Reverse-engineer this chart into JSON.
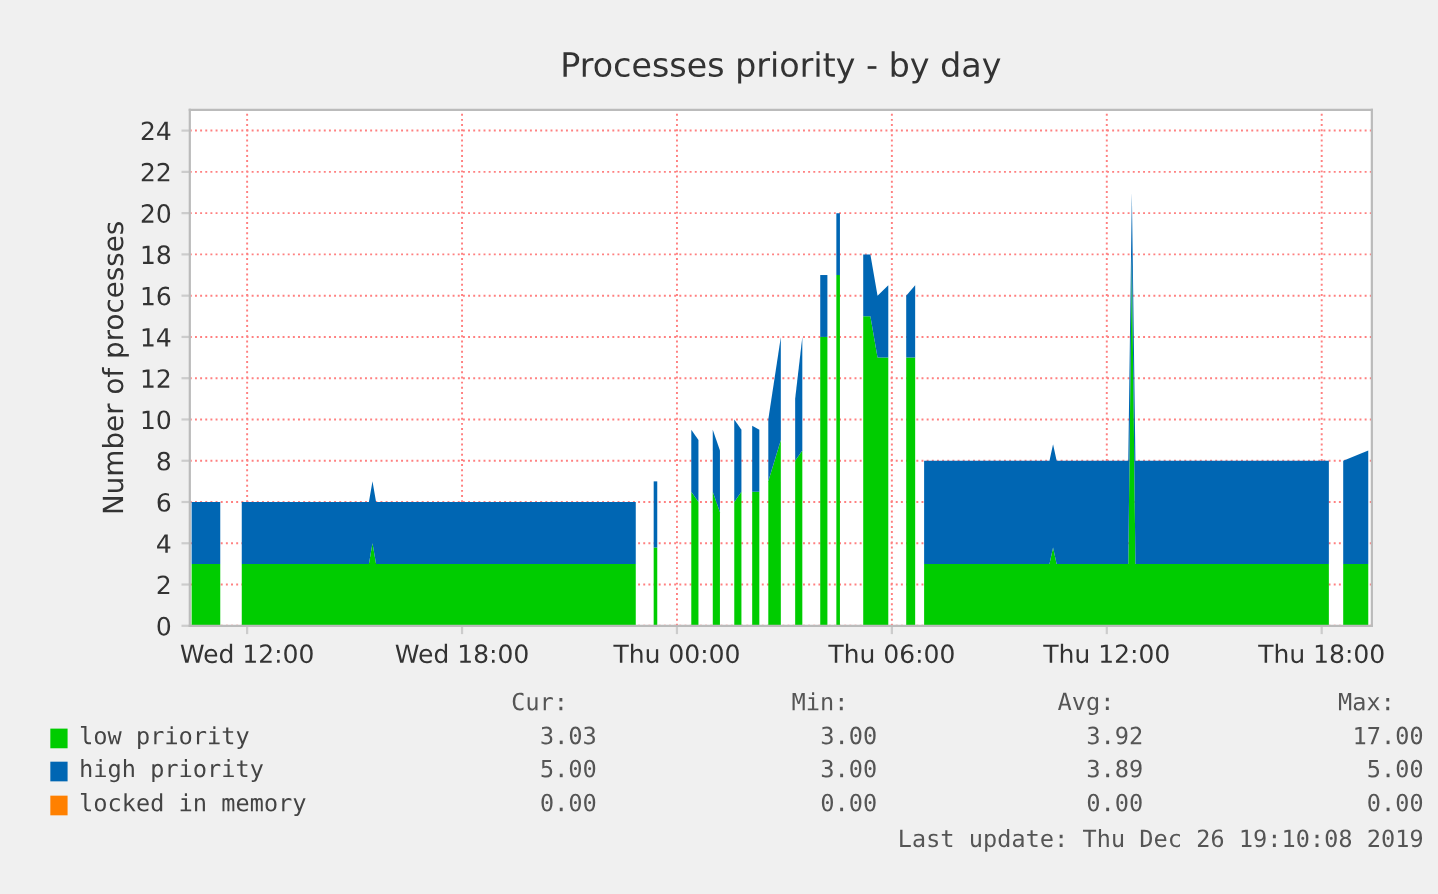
{
  "chart_data": {
    "type": "area",
    "stacked": true,
    "title": "Processes priority - by day",
    "ylabel": "Number of processes",
    "x": [
      "2019-12-25T10:27",
      "2019-12-25T11:15",
      "2019-12-25T11:30",
      "2019-12-25T11:51",
      "2019-12-25T15:24",
      "2019-12-25T15:30",
      "2019-12-25T15:36",
      "2019-12-25T22:51",
      "2019-12-25T23:06",
      "2019-12-25T23:21",
      "2019-12-25T23:27",
      "2019-12-25T23:54",
      "2019-12-26T00:24",
      "2019-12-26T00:36",
      "2019-12-26T00:48",
      "2019-12-26T01:00",
      "2019-12-26T01:12",
      "2019-12-26T01:24",
      "2019-12-26T01:36",
      "2019-12-26T01:48",
      "2019-12-26T02:00",
      "2019-12-26T02:06",
      "2019-12-26T02:18",
      "2019-12-26T02:27",
      "2019-12-26T02:33",
      "2019-12-26T02:54",
      "2019-12-26T03:06",
      "2019-12-26T03:18",
      "2019-12-26T03:30",
      "2019-12-26T03:48",
      "2019-12-26T04:00",
      "2019-12-26T04:12",
      "2019-12-26T04:18",
      "2019-12-26T04:27",
      "2019-12-26T04:33",
      "2019-12-26T04:54",
      "2019-12-26T05:12",
      "2019-12-26T05:24",
      "2019-12-26T05:36",
      "2019-12-26T05:54",
      "2019-12-26T06:06",
      "2019-12-26T06:24",
      "2019-12-26T06:39",
      "2019-12-26T06:48",
      "2019-12-26T06:54",
      "2019-12-26T10:24",
      "2019-12-26T10:30",
      "2019-12-26T10:36",
      "2019-12-26T12:36",
      "2019-12-26T12:42",
      "2019-12-26T12:48",
      "2019-12-26T18:12",
      "2019-12-26T18:24",
      "2019-12-26T18:36",
      "2019-12-26T19:18"
    ],
    "series": [
      {
        "name": "low priority",
        "color": "#00cc00",
        "values": [
          3,
          3,
          null,
          3,
          3,
          4,
          3,
          3,
          null,
          3.8,
          3.8,
          null,
          6.5,
          6,
          null,
          6.5,
          5.5,
          null,
          6,
          6.5,
          null,
          6.5,
          6.5,
          null,
          7,
          9,
          null,
          8,
          8.5,
          null,
          14,
          14,
          null,
          17,
          17,
          null,
          15,
          15,
          13,
          13,
          null,
          13,
          13,
          null,
          3,
          3,
          3.8,
          3,
          3,
          18,
          3,
          3,
          null,
          3,
          3
        ]
      },
      {
        "name": "high priority",
        "color": "#0066b3",
        "values": [
          3,
          3,
          null,
          3,
          3,
          3,
          3,
          3,
          null,
          3.2,
          3.2,
          null,
          3,
          3,
          null,
          3,
          3,
          null,
          4,
          3,
          null,
          3.2,
          3,
          null,
          3,
          5,
          null,
          3,
          5.5,
          null,
          3,
          3,
          null,
          3,
          3,
          null,
          3,
          3,
          3,
          3.5,
          null,
          3,
          3.5,
          null,
          5,
          5,
          5,
          5,
          5,
          3,
          5,
          5,
          null,
          5,
          5.5
        ]
      },
      {
        "name": "locked in memory",
        "color": "#ff8000",
        "values": [
          null,
          null,
          null,
          null,
          null,
          null,
          null,
          null,
          null,
          null,
          null,
          null,
          null,
          null,
          null,
          null,
          null,
          null,
          null,
          null,
          null,
          null,
          null,
          null,
          null,
          null,
          null,
          null,
          null,
          null,
          null,
          null,
          null,
          null,
          null,
          null,
          null,
          null,
          null,
          null,
          null,
          null,
          null,
          null,
          null,
          null,
          null,
          null,
          null,
          null,
          null,
          null,
          null,
          null,
          null
        ]
      }
    ],
    "xlim": [
      "2019-12-25T10:24",
      "2019-12-26T19:24"
    ],
    "xticks": [
      {
        "value": "2019-12-25T12:00",
        "label": "Wed 12:00"
      },
      {
        "value": "2019-12-25T18:00",
        "label": "Wed 18:00"
      },
      {
        "value": "2019-12-26T00:00",
        "label": "Thu 00:00"
      },
      {
        "value": "2019-12-26T06:00",
        "label": "Thu 06:00"
      },
      {
        "value": "2019-12-26T12:00",
        "label": "Thu 12:00"
      },
      {
        "value": "2019-12-26T18:00",
        "label": "Thu 18:00"
      }
    ],
    "ylim": [
      0,
      25
    ],
    "yticks": [
      0,
      2,
      4,
      6,
      8,
      10,
      12,
      14,
      16,
      18,
      20,
      22,
      24
    ],
    "grid": true,
    "legend": "bottom",
    "annotations": [
      "Cur:",
      "Min:",
      "Avg:",
      "Max:",
      "3.03",
      "3.00",
      "3.92",
      "17.00",
      "5.00",
      "3.00",
      "3.89",
      "5.00",
      "0.00",
      "0.00",
      "0.00",
      "0.00",
      "Last update: Thu Dec 26 19:10:08 2019"
    ]
  }
}
